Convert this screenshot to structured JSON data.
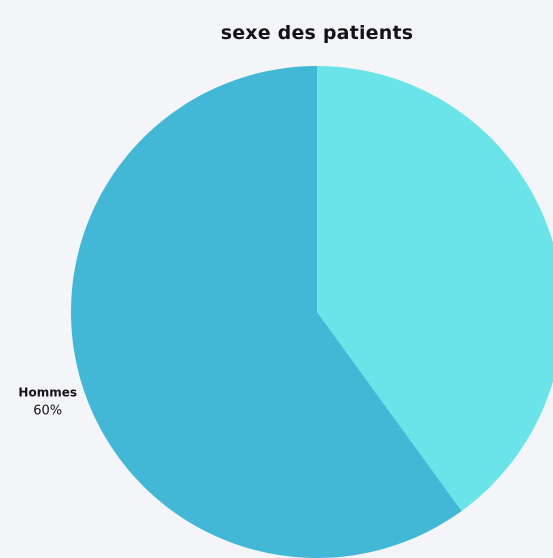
{
  "chart_data": {
    "type": "pie",
    "title": "sexe des patients",
    "slices": [
      {
        "name": "",
        "value": 40,
        "color": "#6ae4e8",
        "label_visible": false,
        "pct_label": ""
      },
      {
        "name": "Hommes",
        "value": 60,
        "color": "#42b8d6",
        "label_visible": true,
        "pct_label": "60%"
      }
    ],
    "start_angle_deg": 0,
    "direction": "clockwise"
  }
}
